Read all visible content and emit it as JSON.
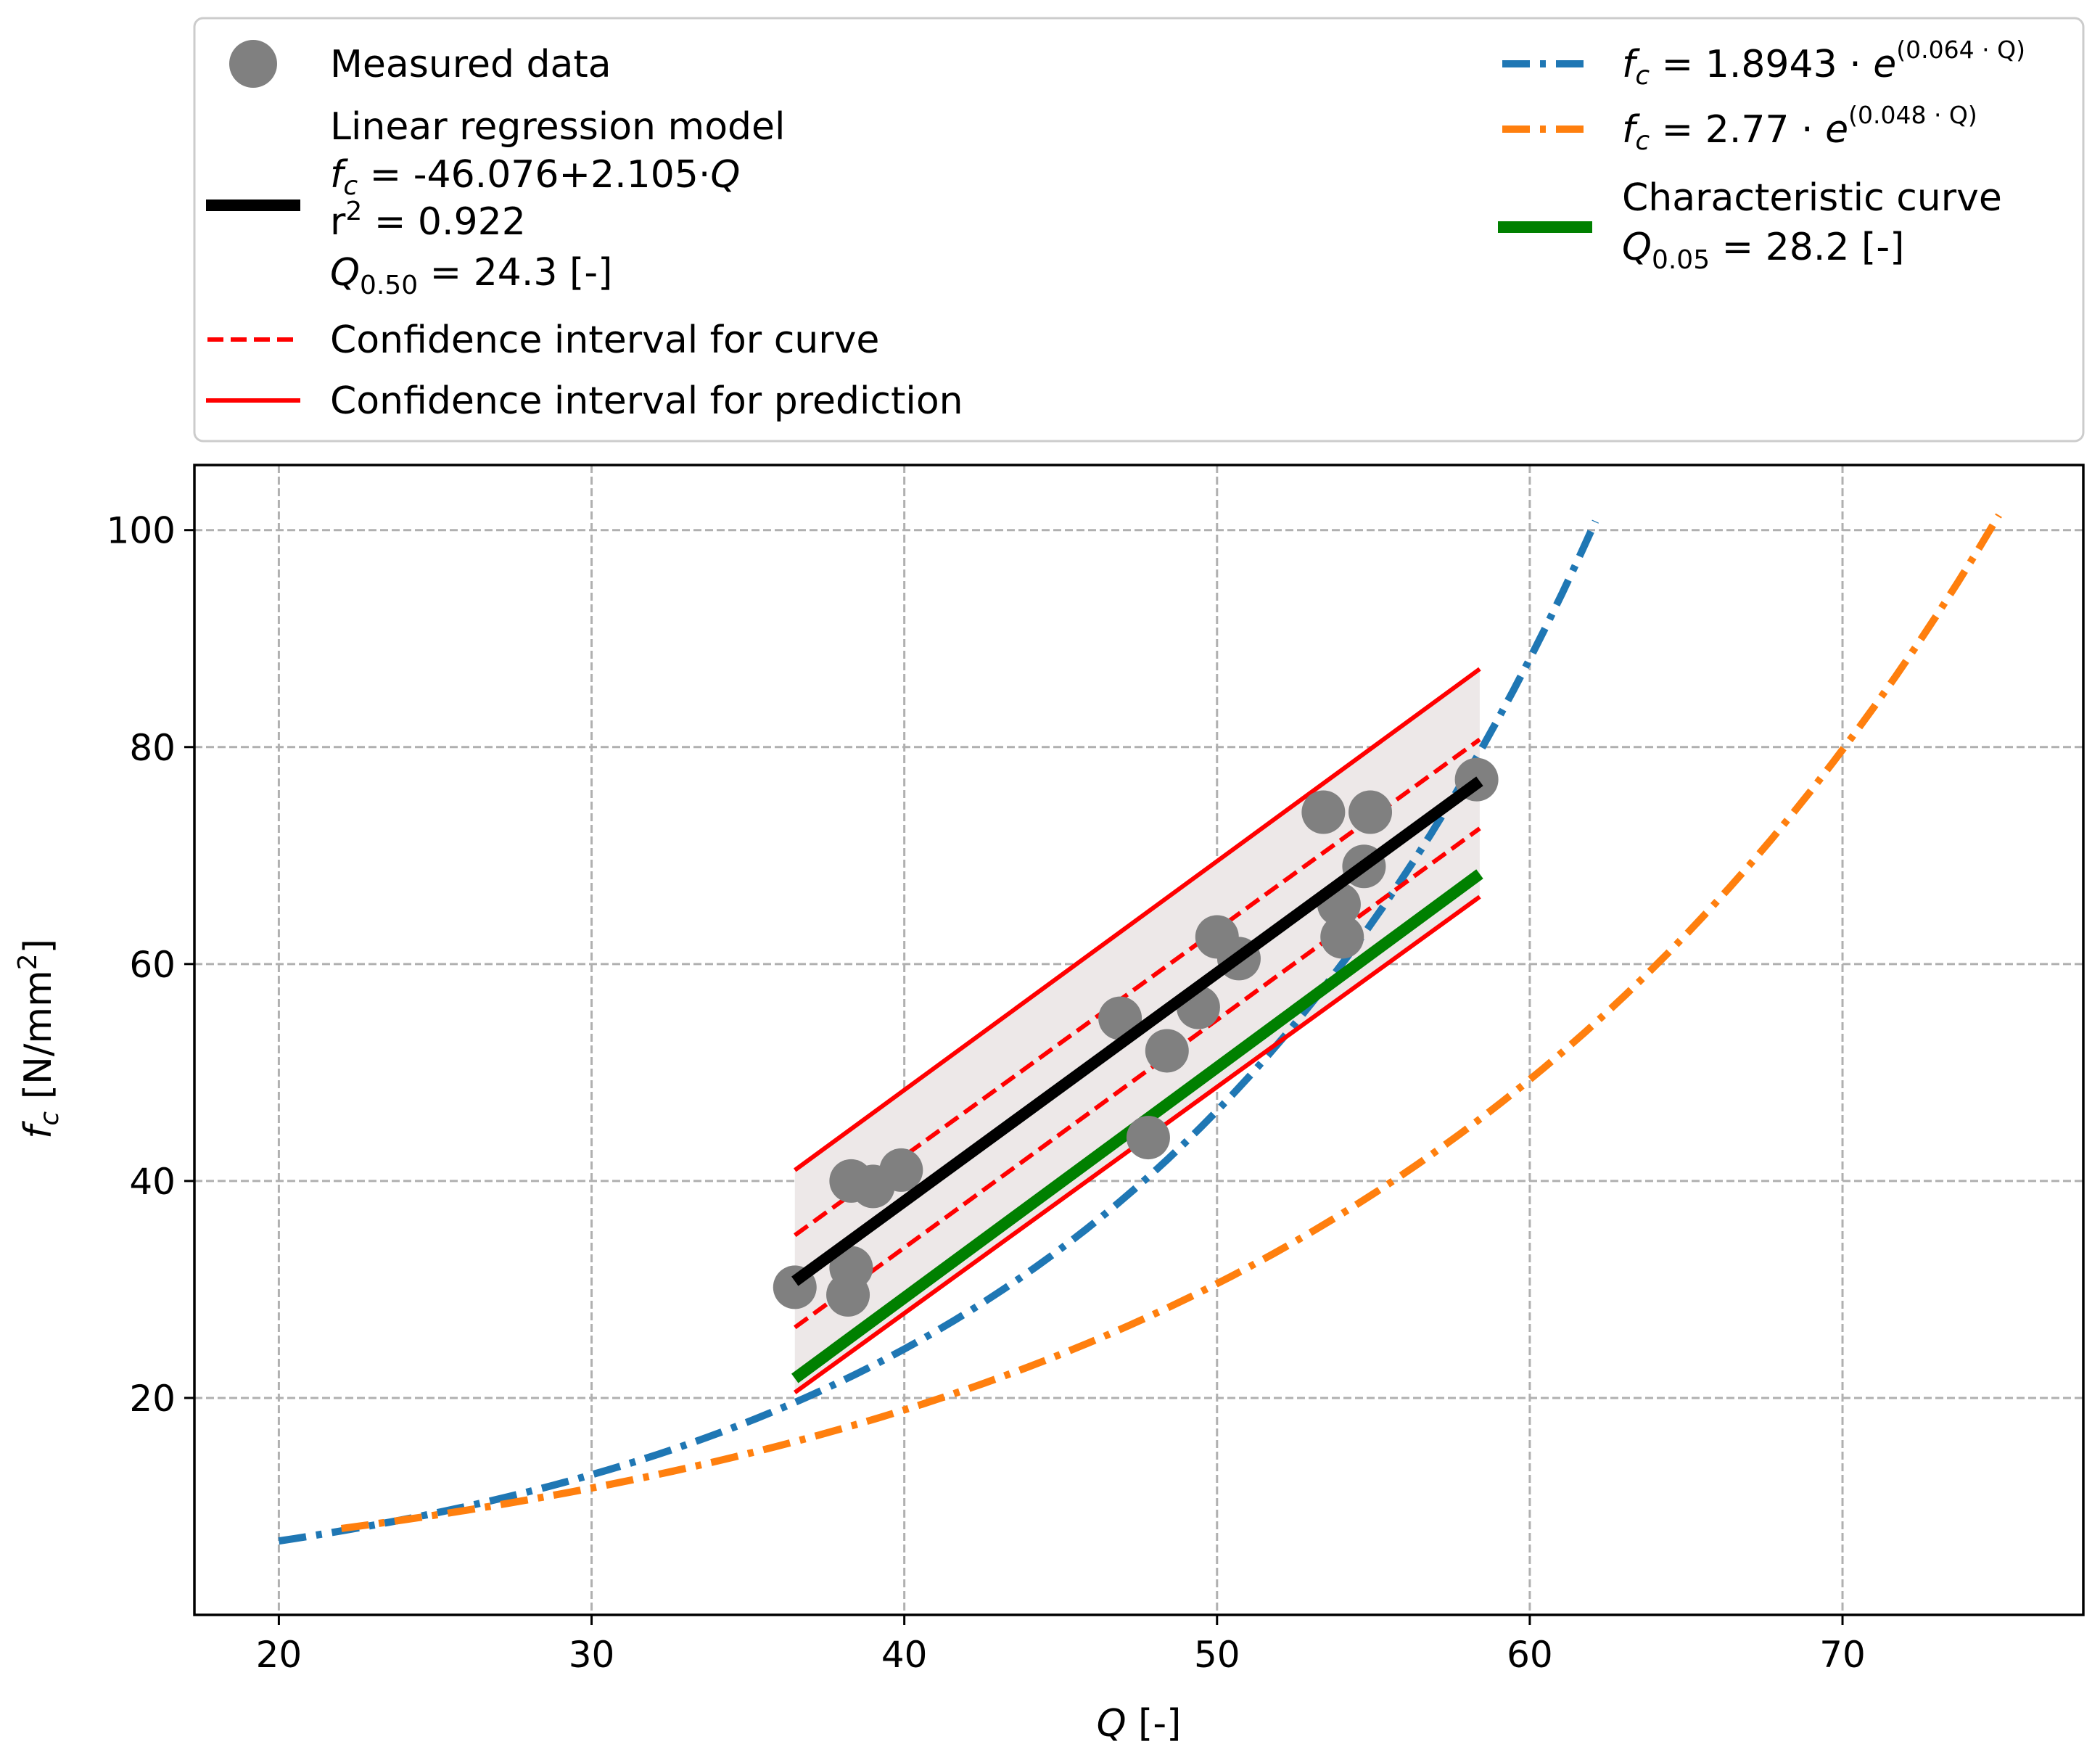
{
  "chart_data": {
    "type": "scatter",
    "title": "",
    "xlabel": "Q [-]",
    "ylabel": "f_c [N/mm²]",
    "xlim": [
      17.3,
      77.7
    ],
    "ylim": [
      0,
      106
    ],
    "grid": true,
    "x_ticks": [
      "20",
      "30",
      "40",
      "50",
      "60",
      "70"
    ],
    "y_ticks": [
      "20",
      "40",
      "60",
      "80",
      "100"
    ],
    "legend_placement": "above plot",
    "colors": {
      "measured": "#808080",
      "regression": "#000000",
      "confidence": "#ff0000",
      "exp1": "#1f77b4",
      "exp2": "#ff7f0e",
      "characteristic": "#008000",
      "band": "#ede8e8"
    },
    "measured_data": {
      "name": "Measured data",
      "points": [
        {
          "x": 36.5,
          "y": 30.2
        },
        {
          "x": 38.2,
          "y": 29.5
        },
        {
          "x": 38.3,
          "y": 32.0
        },
        {
          "x": 38.3,
          "y": 40.0
        },
        {
          "x": 39.0,
          "y": 39.5
        },
        {
          "x": 39.9,
          "y": 41.0
        },
        {
          "x": 46.9,
          "y": 55.0
        },
        {
          "x": 47.8,
          "y": 44.0
        },
        {
          "x": 48.4,
          "y": 52.0
        },
        {
          "x": 49.4,
          "y": 56.0
        },
        {
          "x": 50.0,
          "y": 62.5
        },
        {
          "x": 50.7,
          "y": 60.5
        },
        {
          "x": 53.4,
          "y": 74.0
        },
        {
          "x": 53.9,
          "y": 65.5
        },
        {
          "x": 54.0,
          "y": 62.5
        },
        {
          "x": 54.7,
          "y": 69.0
        },
        {
          "x": 54.9,
          "y": 74.0
        },
        {
          "x": 58.3,
          "y": 77.0
        }
      ]
    },
    "regression": {
      "label_lines": [
        "Linear regression model",
        "f_c = -46.076+2.105·Q",
        "r² = 0.922",
        "Q_0.50 = 24.3 [-]"
      ],
      "intercept": -46.076,
      "slope": 2.105,
      "r2": 0.922,
      "x_range": [
        36.5,
        58.4
      ]
    },
    "confidence_curve": {
      "label": "Confidence interval for curve",
      "upper": [
        [
          36.5,
          35.0
        ],
        [
          58.4,
          80.7
        ]
      ],
      "lower": [
        [
          36.5,
          26.5
        ],
        [
          58.4,
          72.5
        ]
      ]
    },
    "confidence_prediction": {
      "label": "Confidence interval for prediction",
      "upper": [
        [
          36.5,
          41.0
        ],
        [
          58.4,
          87.2
        ]
      ],
      "lower": [
        [
          36.5,
          20.5
        ],
        [
          58.4,
          66.2
        ]
      ]
    },
    "exp_curves": [
      {
        "name": "exp1",
        "coef": 1.8943,
        "rate": 0.064,
        "x_range": [
          20,
          62.1
        ],
        "label_prefix": "f",
        "label_sub": "c",
        "label_body": " = 1.8943 · e",
        "label_sup": "(0.064 · Q)"
      },
      {
        "name": "exp2",
        "coef": 2.77,
        "rate": 0.048,
        "x_range": [
          22,
          75
        ],
        "label_prefix": "f",
        "label_sub": "c",
        "label_body": " = 2.77 · e",
        "label_sup": "(0.048 · Q)"
      }
    ],
    "characteristic": {
      "label_lines": [
        "Characteristic curve",
        "Q_0.05 = 28.2 [-]"
      ],
      "points": [
        [
          36.5,
          21.8
        ],
        [
          58.4,
          68.3
        ]
      ]
    }
  },
  "legend": {
    "measured": "Measured data",
    "regression_title": "Linear regression model",
    "regression_eq_sub": "c",
    "regression_eq_rest": " = -46.076+2.105·",
    "regression_eq_q": "Q",
    "r2_base": "r",
    "r2_sup": "2",
    "r2_rest": " = 0.922",
    "q50_q": "Q",
    "q50_sub": "0.50",
    "q50_rest": " = 24.3 [-]",
    "conf_curve": "Confidence interval for curve",
    "conf_pred": "Confidence interval for prediction",
    "exp1_prefix": "f",
    "exp1_sub": "c",
    "exp1_body": " = 1.8943 · ",
    "exp1_e": "e",
    "exp1_sup": "(0.064 · Q)",
    "exp2_prefix": "f",
    "exp2_sub": "c",
    "exp2_body": " = 2.77 · ",
    "exp2_e": "e",
    "exp2_sup": "(0.048 · Q)",
    "char_title": "Characteristic curve",
    "char_q": "Q",
    "char_sub": "0.05",
    "char_rest": " = 28.2 [-]"
  },
  "axes": {
    "x_label_q": "Q",
    "x_label_rest": " [-]",
    "y_label_f": "f",
    "y_label_sub": "c",
    "y_label_rest": " [N/mm",
    "y_label_sup": "2",
    "y_label_close": "]"
  }
}
